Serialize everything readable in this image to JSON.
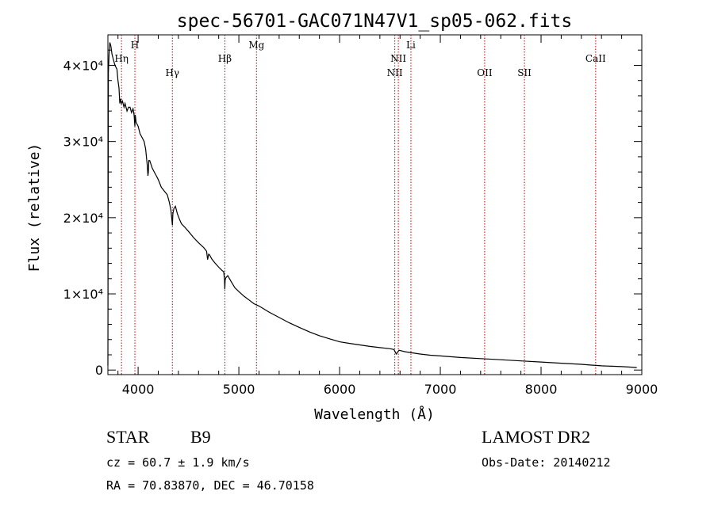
{
  "chart_data": {
    "type": "line",
    "title": "spec-56701-GAC071N47V1_sp05-062.fits",
    "xlabel": "Wavelength (Å)",
    "ylabel": "Flux (relative)",
    "xlim": [
      3700,
      9000
    ],
    "ylim": [
      -600,
      44000
    ],
    "x_ticks": [
      4000,
      5000,
      6000,
      7000,
      8000,
      9000
    ],
    "x_tick_labels": [
      "4000",
      "5000",
      "6000",
      "7000",
      "8000",
      "9000"
    ],
    "y_ticks": [
      0,
      10000,
      20000,
      30000,
      40000
    ],
    "y_tick_labels": [
      "0",
      "1×10⁴",
      "2×10⁴",
      "3×10⁴",
      "4×10⁴"
    ],
    "series": [
      {
        "x": [
          3700,
          3705,
          3712,
          3720,
          3730,
          3740,
          3750,
          3770,
          3790,
          3800,
          3810,
          3818,
          3825,
          3835,
          3845,
          3860,
          3870,
          3890,
          3905,
          3920,
          3935,
          3950,
          3960,
          3968,
          3972,
          3980,
          4000,
          4020,
          4040,
          4060,
          4075,
          4090,
          4098,
          4102,
          4106,
          4115,
          4140,
          4160,
          4180,
          4200,
          4230,
          4260,
          4290,
          4310,
          4325,
          4335,
          4340,
          4345,
          4355,
          4370,
          4390,
          4410,
          4430,
          4460,
          4500,
          4550,
          4600,
          4650,
          4680,
          4690,
          4700,
          4710,
          4730,
          4760,
          4800,
          4830,
          4850,
          4858,
          4861,
          4864,
          4870,
          4890,
          4920,
          4960,
          5000,
          5050,
          5100,
          5150,
          5200,
          5300,
          5400,
          5500,
          5600,
          5700,
          5800,
          5900,
          6000,
          6100,
          6200,
          6300,
          6400,
          6500,
          6540,
          6563,
          6590,
          6650,
          6700,
          6800,
          6900,
          7000,
          7200,
          7400,
          7600,
          7800,
          8000,
          8200,
          8400,
          8500,
          8600,
          8700,
          8800,
          8900,
          8950
        ],
        "y": [
          600,
          39000,
          41500,
          43000,
          42500,
          41500,
          41000,
          40000,
          39500,
          38000,
          37000,
          35000,
          35600,
          35000,
          35300,
          34500,
          35000,
          34000,
          34500,
          34500,
          33800,
          34300,
          33500,
          32000,
          33500,
          32500,
          32000,
          31000,
          30500,
          30000,
          29000,
          27000,
          25500,
          26000,
          27500,
          27500,
          26500,
          26000,
          25500,
          25000,
          24000,
          23500,
          23000,
          22000,
          21000,
          19800,
          19000,
          20500,
          21200,
          21500,
          20500,
          19800,
          19200,
          18800,
          18200,
          17400,
          16700,
          16100,
          15600,
          14500,
          15200,
          15100,
          14600,
          14100,
          13500,
          13100,
          12900,
          11800,
          10600,
          11800,
          12100,
          12400,
          11700,
          10800,
          10300,
          9700,
          9200,
          8700,
          8400,
          7600,
          6900,
          6200,
          5600,
          5000,
          4500,
          4100,
          3700,
          3500,
          3300,
          3100,
          2950,
          2800,
          2700,
          2100,
          2600,
          2400,
          2300,
          2100,
          1950,
          1850,
          1650,
          1500,
          1350,
          1200,
          1050,
          900,
          750,
          650,
          550,
          500,
          450,
          380,
          330
        ]
      }
    ],
    "line_color": "#000000",
    "marker_color": "#c00000",
    "markers": [
      {
        "name": "Hη",
        "x": 3835,
        "label_row": 2
      },
      {
        "name": "H",
        "x": 3968,
        "label_row": 1
      },
      {
        "name": "Hγ",
        "x": 4340,
        "label_row": 3
      },
      {
        "name": "Hβ",
        "x": 4861,
        "label_row": 2
      },
      {
        "name": "Mg",
        "x": 5175,
        "label_row": 1
      },
      {
        "name": "NII",
        "x": 6548,
        "label_row": 3
      },
      {
        "name": "NII",
        "x": 6583,
        "label_row": 2
      },
      {
        "name": "Li",
        "x": 6708,
        "label_row": 1
      },
      {
        "name": "OII",
        "x": 7440,
        "label_row": 3
      },
      {
        "name": "SII",
        "x": 7835,
        "label_row": 3
      },
      {
        "name": "CaII",
        "x": 8542,
        "label_row": 2
      }
    ]
  },
  "info": {
    "class_label": "STAR",
    "subclass_label": "B9",
    "survey_label": "LAMOST DR2",
    "cz_label": "cz = 60.7 ± 1.9 km/s",
    "obs_date_label": "Obs-Date: 20140212",
    "coords_label": "RA =  70.83870, DEC =  46.70158"
  }
}
